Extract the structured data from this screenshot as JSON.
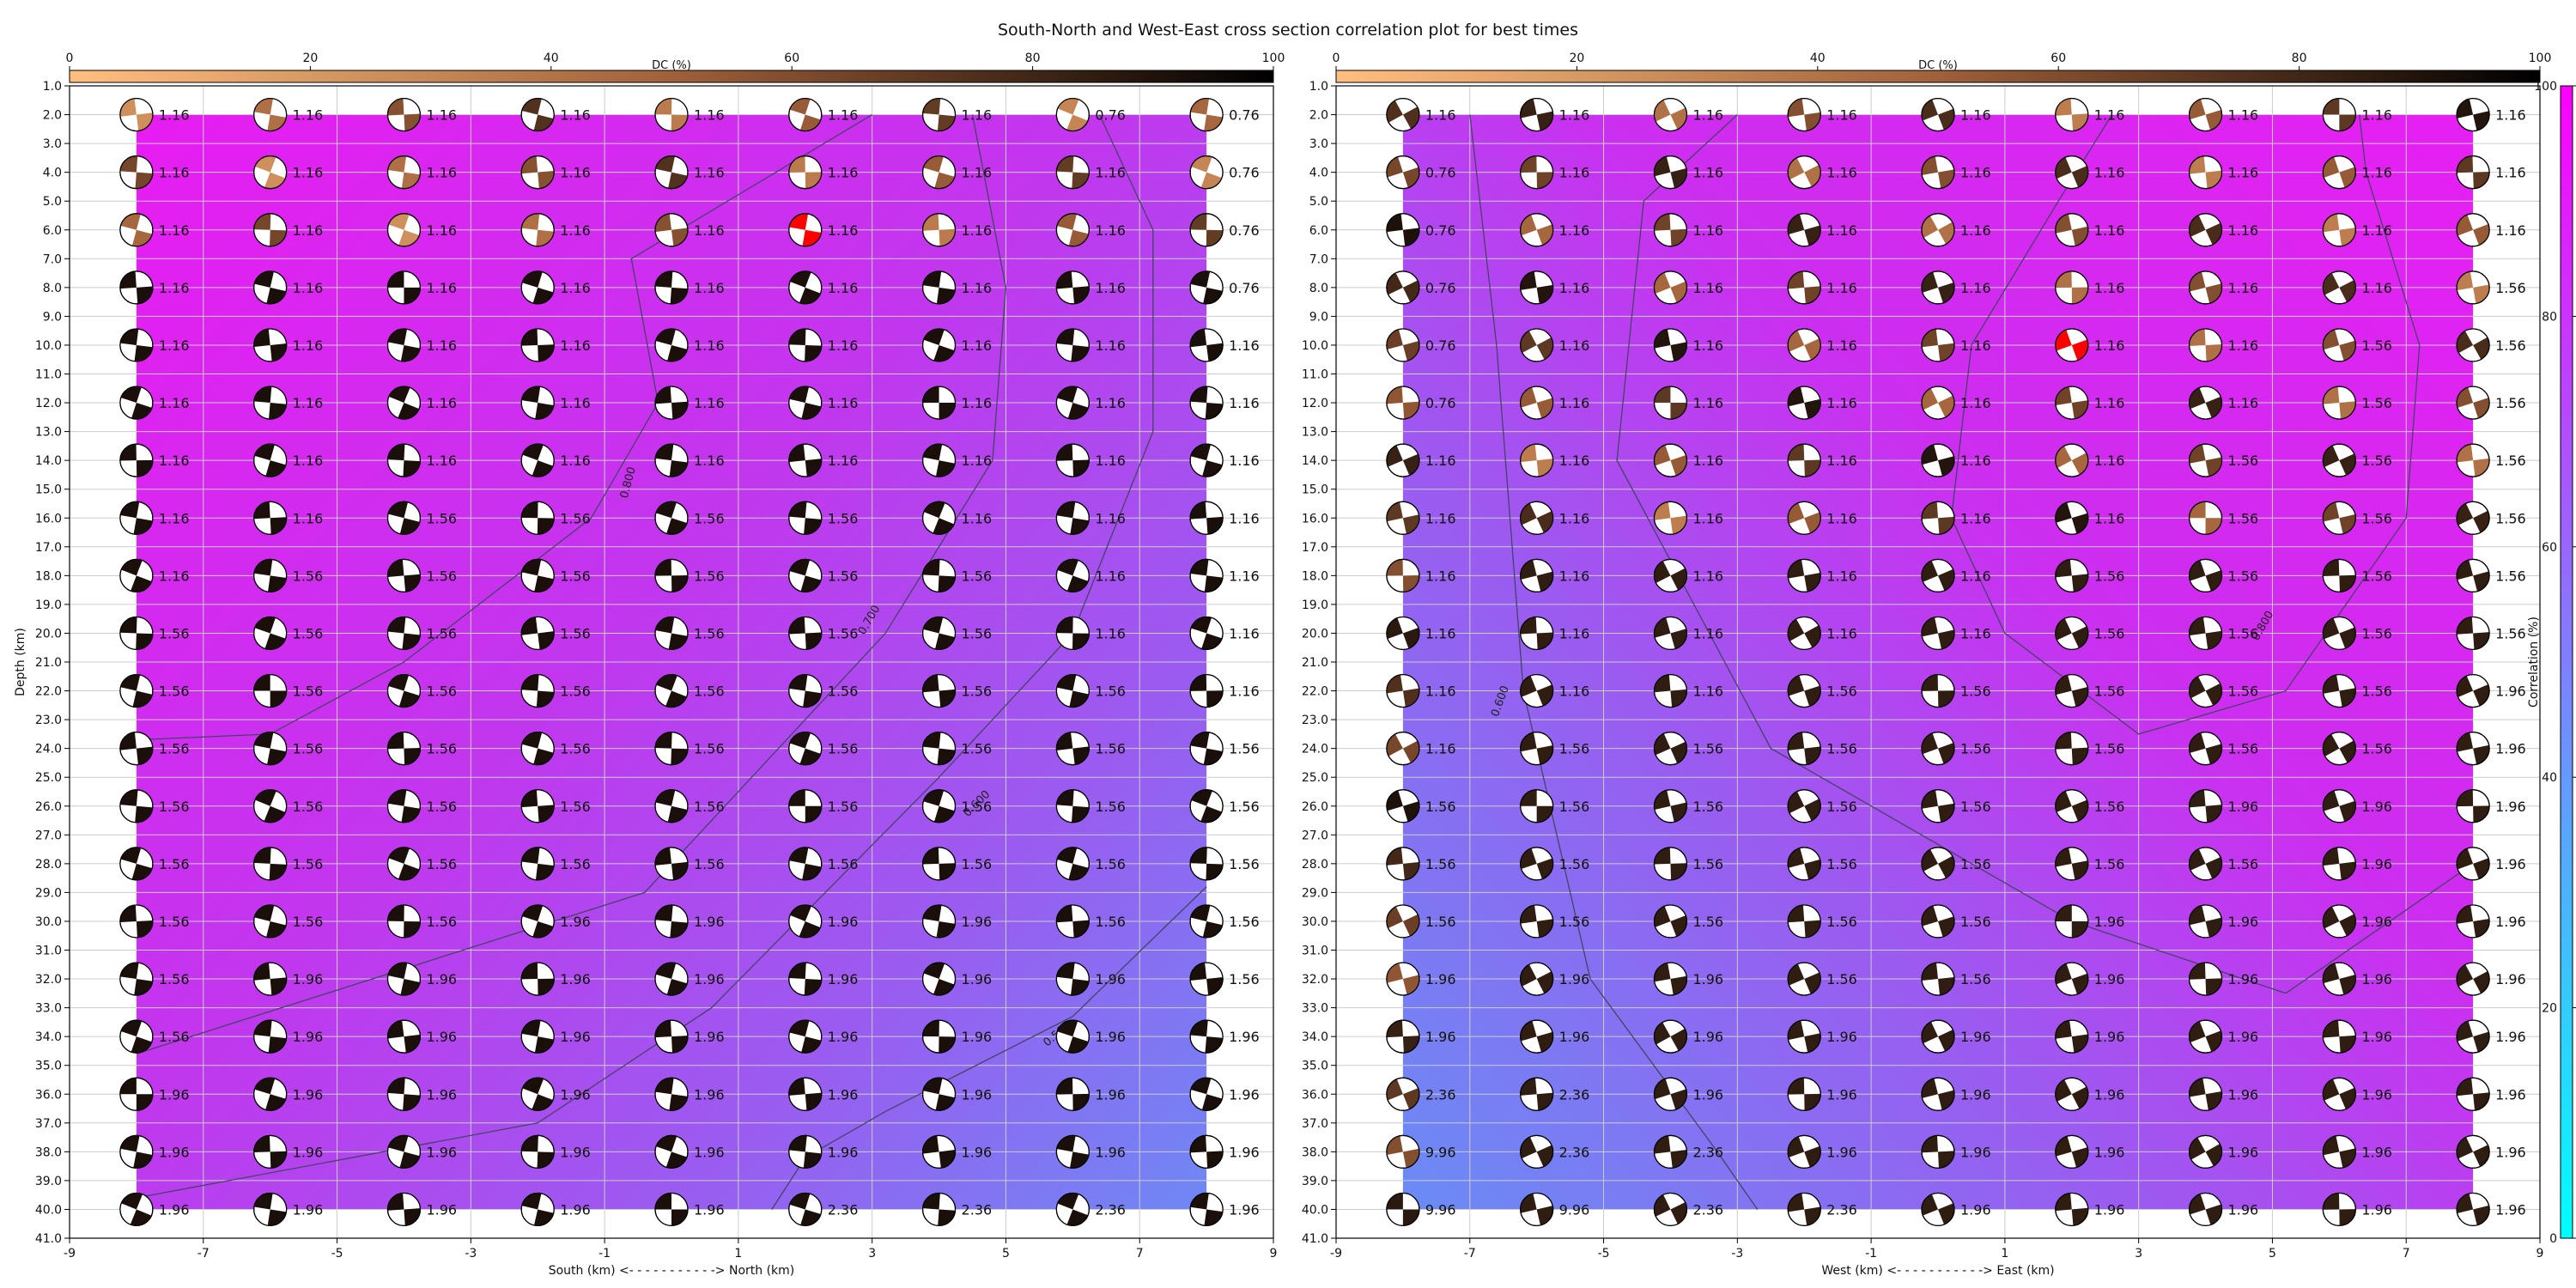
{
  "chart_data": {
    "title": "South-North and West-East cross section correlation plot for best times",
    "type": "heatmap",
    "panels": [
      {
        "name": "south-north",
        "xlabel": "South (km) <- - - - - - - - - - -> North (km)",
        "ylabel": "Depth (km)",
        "xlim": [
          -9,
          9
        ],
        "ylim": [
          41,
          1
        ],
        "xticks": [
          -9,
          -7,
          -5,
          -3,
          -1,
          1,
          3,
          5,
          7,
          9
        ],
        "x_positions": [
          -8,
          -6,
          -4,
          -2,
          0,
          2,
          4,
          6,
          8
        ],
        "depths": [
          2,
          4,
          6,
          8,
          10,
          12,
          14,
          16,
          18,
          20,
          22,
          24,
          26,
          28,
          30,
          32,
          34,
          36,
          38,
          40
        ],
        "time_labels": [
          [
            "1.16",
            "1.16",
            "1.16",
            "1.16",
            "1.16",
            "1.16",
            "1.16",
            "0.76",
            "0.76"
          ],
          [
            "1.16",
            "1.16",
            "1.16",
            "1.16",
            "1.16",
            "1.16",
            "1.16",
            "1.16",
            "0.76"
          ],
          [
            "1.16",
            "1.16",
            "1.16",
            "1.16",
            "1.16",
            "1.16",
            "1.16",
            "1.16",
            "0.76"
          ],
          [
            "1.16",
            "1.16",
            "1.16",
            "1.16",
            "1.16",
            "1.16",
            "1.16",
            "1.16",
            "0.76"
          ],
          [
            "1.16",
            "1.16",
            "1.16",
            "1.16",
            "1.16",
            "1.16",
            "1.16",
            "1.16",
            "1.16"
          ],
          [
            "1.16",
            "1.16",
            "1.16",
            "1.16",
            "1.16",
            "1.16",
            "1.16",
            "1.16",
            "1.16"
          ],
          [
            "1.16",
            "1.16",
            "1.16",
            "1.16",
            "1.16",
            "1.16",
            "1.16",
            "1.16",
            "1.16"
          ],
          [
            "1.16",
            "1.16",
            "1.56",
            "1.56",
            "1.56",
            "1.56",
            "1.16",
            "1.16",
            "1.16"
          ],
          [
            "1.16",
            "1.56",
            "1.56",
            "1.56",
            "1.56",
            "1.56",
            "1.56",
            "1.16",
            "1.16"
          ],
          [
            "1.56",
            "1.56",
            "1.56",
            "1.56",
            "1.56",
            "1.56",
            "1.56",
            "1.16",
            "1.16"
          ],
          [
            "1.56",
            "1.56",
            "1.56",
            "1.56",
            "1.56",
            "1.56",
            "1.56",
            "1.56",
            "1.16"
          ],
          [
            "1.56",
            "1.56",
            "1.56",
            "1.56",
            "1.56",
            "1.56",
            "1.56",
            "1.56",
            "1.56"
          ],
          [
            "1.56",
            "1.56",
            "1.56",
            "1.56",
            "1.56",
            "1.56",
            "1.56",
            "1.56",
            "1.56"
          ],
          [
            "1.56",
            "1.56",
            "1.56",
            "1.56",
            "1.56",
            "1.56",
            "1.56",
            "1.56",
            "1.56"
          ],
          [
            "1.56",
            "1.56",
            "1.56",
            "1.96",
            "1.96",
            "1.96",
            "1.96",
            "1.56",
            "1.56"
          ],
          [
            "1.56",
            "1.96",
            "1.96",
            "1.96",
            "1.96",
            "1.96",
            "1.96",
            "1.96",
            "1.56"
          ],
          [
            "1.56",
            "1.96",
            "1.96",
            "1.96",
            "1.96",
            "1.96",
            "1.96",
            "1.96",
            "1.96"
          ],
          [
            "1.96",
            "1.96",
            "1.96",
            "1.96",
            "1.96",
            "1.96",
            "1.96",
            "1.96",
            "1.96"
          ],
          [
            "1.96",
            "1.96",
            "1.96",
            "1.96",
            "1.96",
            "1.96",
            "1.96",
            "1.96",
            "1.96"
          ],
          [
            "1.96",
            "1.96",
            "1.96",
            "1.96",
            "1.96",
            "2.36",
            "2.36",
            "2.36",
            "1.96"
          ]
        ],
        "best_solution": [
          2,
          5
        ],
        "contour_labels": [
          "0.800",
          "0.700",
          "0.600",
          "0.500"
        ]
      },
      {
        "name": "west-east",
        "xlabel": "West (km) <- - - - - - - - - - -> East (km)",
        "ylabel": "",
        "xlim": [
          -9,
          9
        ],
        "ylim": [
          41,
          1
        ],
        "xticks": [
          -9,
          -7,
          -5,
          -3,
          -1,
          1,
          3,
          5,
          7,
          9
        ],
        "x_positions": [
          -8,
          -6,
          -4,
          -2,
          0,
          2,
          4,
          6,
          8
        ],
        "depths": [
          2,
          4,
          6,
          8,
          10,
          12,
          14,
          16,
          18,
          20,
          22,
          24,
          26,
          28,
          30,
          32,
          34,
          36,
          38,
          40
        ],
        "time_labels": [
          [
            "1.16",
            "1.16",
            "1.16",
            "1.16",
            "1.16",
            "1.16",
            "1.16",
            "1.16",
            "1.16"
          ],
          [
            "0.76",
            "1.16",
            "1.16",
            "1.16",
            "1.16",
            "1.16",
            "1.16",
            "1.16",
            "1.16"
          ],
          [
            "0.76",
            "1.16",
            "1.16",
            "1.16",
            "1.16",
            "1.16",
            "1.16",
            "1.16",
            "1.16"
          ],
          [
            "0.76",
            "1.16",
            "1.16",
            "1.16",
            "1.16",
            "1.16",
            "1.16",
            "1.16",
            "1.56"
          ],
          [
            "0.76",
            "1.16",
            "1.16",
            "1.16",
            "1.16",
            "1.16",
            "1.16",
            "1.56",
            "1.56"
          ],
          [
            "0.76",
            "1.16",
            "1.16",
            "1.16",
            "1.16",
            "1.16",
            "1.16",
            "1.56",
            "1.56"
          ],
          [
            "1.16",
            "1.16",
            "1.16",
            "1.16",
            "1.16",
            "1.16",
            "1.56",
            "1.56",
            "1.56"
          ],
          [
            "1.16",
            "1.16",
            "1.16",
            "1.16",
            "1.16",
            "1.16",
            "1.56",
            "1.56",
            "1.56"
          ],
          [
            "1.16",
            "1.16",
            "1.16",
            "1.16",
            "1.16",
            "1.56",
            "1.56",
            "1.56",
            "1.56"
          ],
          [
            "1.16",
            "1.16",
            "1.16",
            "1.16",
            "1.16",
            "1.56",
            "1.56",
            "1.56",
            "1.56"
          ],
          [
            "1.16",
            "1.16",
            "1.16",
            "1.56",
            "1.56",
            "1.56",
            "1.56",
            "1.56",
            "1.96"
          ],
          [
            "1.16",
            "1.56",
            "1.56",
            "1.56",
            "1.56",
            "1.56",
            "1.56",
            "1.56",
            "1.96"
          ],
          [
            "1.56",
            "1.56",
            "1.56",
            "1.56",
            "1.56",
            "1.56",
            "1.96",
            "1.96",
            "1.96"
          ],
          [
            "1.56",
            "1.56",
            "1.56",
            "1.56",
            "1.56",
            "1.56",
            "1.56",
            "1.96",
            "1.96"
          ],
          [
            "1.56",
            "1.56",
            "1.56",
            "1.56",
            "1.56",
            "1.96",
            "1.96",
            "1.96",
            "1.96"
          ],
          [
            "1.96",
            "1.96",
            "1.96",
            "1.56",
            "1.56",
            "1.96",
            "1.96",
            "1.96",
            "1.96"
          ],
          [
            "1.96",
            "1.96",
            "1.96",
            "1.96",
            "1.96",
            "1.96",
            "1.96",
            "1.96",
            "1.96"
          ],
          [
            "2.36",
            "2.36",
            "1.96",
            "1.96",
            "1.96",
            "1.96",
            "1.96",
            "1.96",
            "1.96"
          ],
          [
            "9.96",
            "2.36",
            "2.36",
            "1.96",
            "1.96",
            "1.96",
            "1.96",
            "1.96",
            "1.96"
          ],
          [
            "9.96",
            "9.96",
            "2.36",
            "2.36",
            "1.96",
            "1.96",
            "1.96",
            "1.96",
            "1.96"
          ]
        ],
        "best_solution": [
          4,
          5
        ],
        "contour_labels": [
          "0.800",
          "0.600"
        ]
      }
    ],
    "dc_colorbar": {
      "label": "DC (%)",
      "range": [
        0,
        100
      ],
      "ticks": [
        0,
        20,
        40,
        60,
        80,
        100
      ]
    },
    "corr_colorbar": {
      "label": "Correlation (%)",
      "range": [
        0,
        100
      ],
      "ticks": [
        0,
        20,
        40,
        60,
        80,
        100
      ]
    },
    "colors": {
      "best": "#ff0000",
      "grid": "#cccccc",
      "contour": "#444466",
      "corr_high": "#ff00ff",
      "corr_low": "#00ffff",
      "dc_high": "#000000",
      "dc_low": "#ffb380"
    }
  }
}
